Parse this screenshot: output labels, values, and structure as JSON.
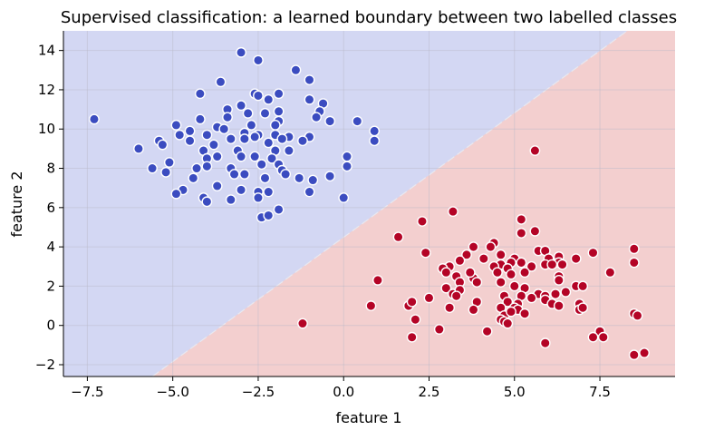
{
  "chart_data": {
    "type": "scatter",
    "title": "Supervised classification: a learned boundary between two labelled classes",
    "xlabel": "feature 1",
    "ylabel": "feature 2",
    "xlim": [
      -8.2,
      9.7
    ],
    "ylim": [
      -2.6,
      15.0
    ],
    "xticks": [
      -7.5,
      -5.0,
      -2.5,
      0.0,
      2.5,
      5.0,
      7.5
    ],
    "xtick_labels": [
      "−7.5",
      "−5.0",
      "−2.5",
      "0.0",
      "2.5",
      "5.0",
      "7.5"
    ],
    "yticks": [
      -2,
      0,
      2,
      4,
      6,
      8,
      10,
      12,
      14
    ],
    "ytick_labels": [
      "−2",
      "0",
      "2",
      "4",
      "6",
      "8",
      "10",
      "12",
      "14"
    ],
    "grid": true,
    "legend": "none",
    "decision_boundary": {
      "line": [
        [
          -5.6,
          -2.6
        ],
        [
          8.3,
          15.0
        ]
      ],
      "region_above_color": "#d3d7f3",
      "region_below_color": "#f3cfcf"
    },
    "series": [
      {
        "color": "#3b4cc0",
        "points": [
          [
            -7.3,
            10.5
          ],
          [
            -3.0,
            13.9
          ],
          [
            -2.5,
            13.5
          ],
          [
            -1.4,
            13.0
          ],
          [
            -3.6,
            12.4
          ],
          [
            -1.0,
            12.5
          ],
          [
            -4.2,
            11.8
          ],
          [
            -2.6,
            11.8
          ],
          [
            -1.9,
            11.8
          ],
          [
            -2.2,
            11.5
          ],
          [
            -2.5,
            11.7
          ],
          [
            -1.0,
            11.5
          ],
          [
            -0.6,
            11.3
          ],
          [
            -3.0,
            11.2
          ],
          [
            -3.4,
            11.0
          ],
          [
            -2.8,
            10.8
          ],
          [
            -2.3,
            10.8
          ],
          [
            -1.9,
            10.9
          ],
          [
            -0.7,
            10.9
          ],
          [
            -0.8,
            10.6
          ],
          [
            -4.2,
            10.5
          ],
          [
            -3.4,
            10.6
          ],
          [
            -1.9,
            10.4
          ],
          [
            -0.4,
            10.4
          ],
          [
            -4.9,
            10.2
          ],
          [
            -3.7,
            10.1
          ],
          [
            -2.7,
            10.2
          ],
          [
            -2.0,
            10.2
          ],
          [
            0.4,
            10.4
          ],
          [
            -4.5,
            9.9
          ],
          [
            -3.5,
            10.0
          ],
          [
            -2.9,
            9.8
          ],
          [
            -2.5,
            9.7
          ],
          [
            -2.0,
            9.7
          ],
          [
            -1.6,
            9.6
          ],
          [
            -1.0,
            9.6
          ],
          [
            -4.8,
            9.7
          ],
          [
            -4.0,
            9.7
          ],
          [
            -3.3,
            9.5
          ],
          [
            -2.6,
            9.6
          ],
          [
            -1.8,
            9.5
          ],
          [
            -1.2,
            9.4
          ],
          [
            -5.4,
            9.4
          ],
          [
            -5.3,
            9.2
          ],
          [
            -4.5,
            9.4
          ],
          [
            -3.8,
            9.2
          ],
          [
            -2.9,
            9.5
          ],
          [
            -2.2,
            9.3
          ],
          [
            -6.0,
            9.0
          ],
          [
            -4.1,
            8.9
          ],
          [
            -3.1,
            8.9
          ],
          [
            -2.0,
            8.9
          ],
          [
            -1.6,
            8.9
          ],
          [
            0.1,
            8.6
          ],
          [
            0.9,
            9.9
          ],
          [
            0.9,
            9.4
          ],
          [
            -5.1,
            8.3
          ],
          [
            -4.0,
            8.5
          ],
          [
            -3.7,
            8.6
          ],
          [
            -3.0,
            8.6
          ],
          [
            -2.6,
            8.6
          ],
          [
            -2.1,
            8.5
          ],
          [
            -5.6,
            8.0
          ],
          [
            -4.3,
            8.0
          ],
          [
            -4.0,
            8.1
          ],
          [
            -3.3,
            8.0
          ],
          [
            -2.4,
            8.2
          ],
          [
            -1.9,
            8.2
          ],
          [
            -1.8,
            7.9
          ],
          [
            -5.2,
            7.8
          ],
          [
            -4.4,
            7.5
          ],
          [
            -3.2,
            7.7
          ],
          [
            -2.9,
            7.7
          ],
          [
            -2.3,
            7.5
          ],
          [
            -1.7,
            7.7
          ],
          [
            -1.3,
            7.5
          ],
          [
            -0.9,
            7.4
          ],
          [
            -0.4,
            7.6
          ],
          [
            0.1,
            8.1
          ],
          [
            -4.7,
            6.9
          ],
          [
            -3.7,
            7.1
          ],
          [
            -3.0,
            6.9
          ],
          [
            -2.5,
            6.8
          ],
          [
            -2.2,
            6.8
          ],
          [
            -4.9,
            6.7
          ],
          [
            -4.1,
            6.5
          ],
          [
            -4.0,
            6.3
          ],
          [
            -3.3,
            6.4
          ],
          [
            -2.5,
            6.5
          ],
          [
            -1.0,
            6.8
          ],
          [
            -0.0,
            6.5
          ],
          [
            -1.9,
            5.9
          ],
          [
            -2.4,
            5.5
          ],
          [
            -2.2,
            5.6
          ]
        ]
      },
      {
        "color": "#b40426",
        "points": [
          [
            5.6,
            8.9
          ],
          [
            3.2,
            5.8
          ],
          [
            5.2,
            5.4
          ],
          [
            2.3,
            5.3
          ],
          [
            5.6,
            4.8
          ],
          [
            5.2,
            4.7
          ],
          [
            1.6,
            4.5
          ],
          [
            4.4,
            4.2
          ],
          [
            3.8,
            4.0
          ],
          [
            4.3,
            4.0
          ],
          [
            5.7,
            3.8
          ],
          [
            5.9,
            3.8
          ],
          [
            6.3,
            3.5
          ],
          [
            2.4,
            3.7
          ],
          [
            3.6,
            3.6
          ],
          [
            4.6,
            3.6
          ],
          [
            5.0,
            3.4
          ],
          [
            6.0,
            3.4
          ],
          [
            6.3,
            3.2
          ],
          [
            7.3,
            3.7
          ],
          [
            8.5,
            3.9
          ],
          [
            8.5,
            3.2
          ],
          [
            3.4,
            3.3
          ],
          [
            4.1,
            3.4
          ],
          [
            4.6,
            3.1
          ],
          [
            4.9,
            3.2
          ],
          [
            5.5,
            3.0
          ],
          [
            5.9,
            3.1
          ],
          [
            6.1,
            3.1
          ],
          [
            6.8,
            3.4
          ],
          [
            3.1,
            3.0
          ],
          [
            3.8,
            2.4
          ],
          [
            4.4,
            3.0
          ],
          [
            4.8,
            2.9
          ],
          [
            5.2,
            3.2
          ],
          [
            6.4,
            3.1
          ],
          [
            7.8,
            2.7
          ],
          [
            2.9,
            2.9
          ],
          [
            3.0,
            2.7
          ],
          [
            3.3,
            2.5
          ],
          [
            3.7,
            2.7
          ],
          [
            4.5,
            2.7
          ],
          [
            4.9,
            2.6
          ],
          [
            5.3,
            2.7
          ],
          [
            6.3,
            2.5
          ],
          [
            1.0,
            2.3
          ],
          [
            3.4,
            2.2
          ],
          [
            3.9,
            2.2
          ],
          [
            4.6,
            2.2
          ],
          [
            5.0,
            2.0
          ],
          [
            5.3,
            1.9
          ],
          [
            6.3,
            2.3
          ],
          [
            6.8,
            2.0
          ],
          [
            7.0,
            2.0
          ],
          [
            3.0,
            1.9
          ],
          [
            3.2,
            1.6
          ],
          [
            3.4,
            1.8
          ],
          [
            4.7,
            1.5
          ],
          [
            5.2,
            1.5
          ],
          [
            5.7,
            1.6
          ],
          [
            5.9,
            1.5
          ],
          [
            6.2,
            1.6
          ],
          [
            6.5,
            1.7
          ],
          [
            2.5,
            1.4
          ],
          [
            3.3,
            1.5
          ],
          [
            3.9,
            1.2
          ],
          [
            4.8,
            1.2
          ],
          [
            5.1,
            1.1
          ],
          [
            5.5,
            1.4
          ],
          [
            5.9,
            1.3
          ],
          [
            6.9,
            1.1
          ],
          [
            0.8,
            1.0
          ],
          [
            1.9,
            1.0
          ],
          [
            2.0,
            1.2
          ],
          [
            3.1,
            0.9
          ],
          [
            3.8,
            0.8
          ],
          [
            4.6,
            0.9
          ],
          [
            5.0,
            0.9
          ],
          [
            6.1,
            1.1
          ],
          [
            6.3,
            1.0
          ],
          [
            6.9,
            0.8
          ],
          [
            4.7,
            0.5
          ],
          [
            5.1,
            0.8
          ],
          [
            7.0,
            0.9
          ],
          [
            2.1,
            0.3
          ],
          [
            4.6,
            0.3
          ],
          [
            4.7,
            0.2
          ],
          [
            4.9,
            0.7
          ],
          [
            5.3,
            0.6
          ],
          [
            8.5,
            0.6
          ],
          [
            8.6,
            0.5
          ],
          [
            -1.2,
            0.1
          ],
          [
            4.8,
            0.1
          ],
          [
            2.8,
            -0.2
          ],
          [
            4.2,
            -0.3
          ],
          [
            7.5,
            -0.3
          ],
          [
            2.0,
            -0.6
          ],
          [
            7.3,
            -0.6
          ],
          [
            7.6,
            -0.6
          ],
          [
            5.9,
            -0.9
          ],
          [
            8.8,
            -1.4
          ],
          [
            8.5,
            -1.5
          ]
        ]
      }
    ]
  }
}
